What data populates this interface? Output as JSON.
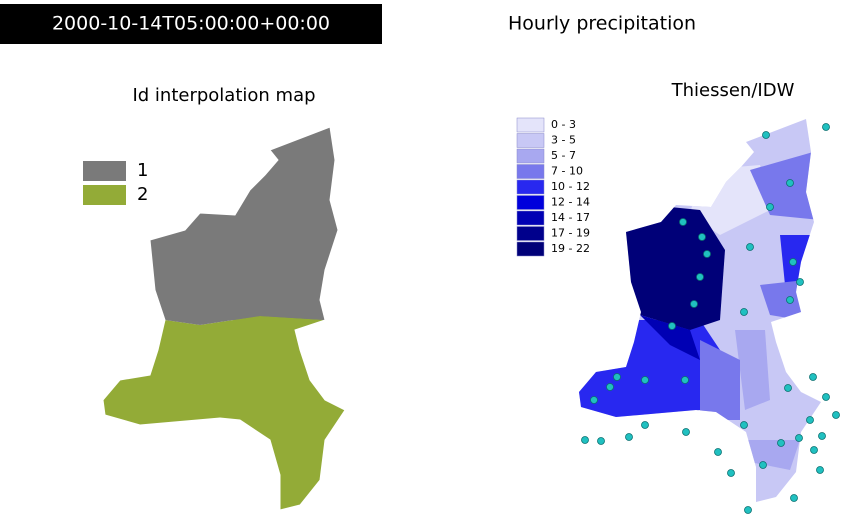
{
  "header": {
    "timestamp": "2000-10-14T05:00:00+00:00",
    "title": "Hourly precipitation"
  },
  "left_map": {
    "title": "Id interpolation map",
    "legend": [
      {
        "label": "1",
        "color": "#7a7a7a"
      },
      {
        "label": "2",
        "color": "#93ab37"
      }
    ]
  },
  "right_map": {
    "title": "Thiessen/IDW",
    "legend": [
      {
        "label": "0 - 3",
        "color": "#e4e4fa"
      },
      {
        "label": "3 - 5",
        "color": "#c8c8f5"
      },
      {
        "label": "5 - 7",
        "color": "#a8a8f0"
      },
      {
        "label": "7 - 10",
        "color": "#7878ec"
      },
      {
        "label": "10 - 12",
        "color": "#2828f0"
      },
      {
        "label": "12 - 14",
        "color": "#0000dc"
      },
      {
        "label": "14 - 17",
        "color": "#0000b4"
      },
      {
        "label": "17 - 19",
        "color": "#00008c"
      },
      {
        "label": "19 - 22",
        "color": "#000078"
      }
    ]
  }
}
